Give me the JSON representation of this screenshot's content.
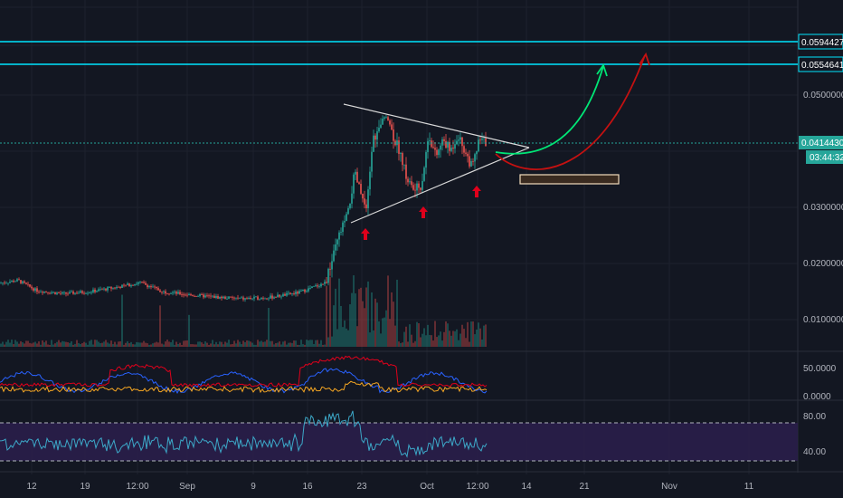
{
  "colors": {
    "background": "#131722",
    "grid": "#1e222d",
    "up": "#26a69a",
    "down": "#ef5350",
    "level_line": "#00e5ff",
    "trendline": "#d9d9d9",
    "arrow_green": "#00e676",
    "arrow_red": "#d50000",
    "up_marker": "#e0001b",
    "oscillator_blue": "#2962ff",
    "oscillator_red": "#e0001b",
    "oscillator_orange": "#f5a623",
    "rsi_line": "#3ca8c8",
    "rsi_band": "#2a1e4a",
    "target_box": "#f2dcbc"
  },
  "price_axis": {
    "ticks": [
      "0.0500000",
      "0.0300000",
      "0.0200000",
      "0.0100000"
    ],
    "level_labels": [
      "0.0594427",
      "0.0554641"
    ],
    "current_price": "0.0414430",
    "countdown": "03:44:32"
  },
  "time_axis": {
    "ticks": [
      "12",
      "19",
      "12:00",
      "Sep",
      "9",
      "16",
      "23",
      "Oct",
      "12:00",
      "14",
      "21",
      "Nov",
      "11"
    ]
  },
  "oscillator_axis": {
    "ticks": [
      "50.0000",
      "0.0000"
    ]
  },
  "rsi_axis": {
    "ticks": [
      "80.00",
      "40.00"
    ]
  },
  "chart_data": [
    {
      "type": "candlestick",
      "title": "",
      "horizontal_levels": [
        0.0594427,
        0.0554641
      ],
      "current_price": 0.041443,
      "y_ticks": [
        0.05,
        0.03,
        0.02,
        0.01
      ],
      "x_ticks": [
        "12",
        "19",
        "12:00",
        "Sep",
        "9",
        "16",
        "23",
        "Oct",
        "12:00",
        "14",
        "21",
        "Nov",
        "11"
      ],
      "price_path_approx": [
        {
          "x": "12",
          "y": 0.0165
        },
        {
          "x": "19",
          "y": 0.0148
        },
        {
          "x": "12:00",
          "y": 0.0155
        },
        {
          "x": "Sep",
          "y": 0.0143
        },
        {
          "x": "9",
          "y": 0.0138
        },
        {
          "x": "16",
          "y": 0.0162
        },
        {
          "x": "23",
          "y": 0.036
        },
        {
          "x": "Oct",
          "y": 0.038
        },
        {
          "x": "12:00",
          "y": 0.0395
        }
      ],
      "annotations": {
        "triangle_upper_trendline": "descending resistance",
        "triangle_lower_trendline": "ascending support",
        "up_arrow_markers": 3,
        "projected_paths": [
          "green",
          "red"
        ]
      }
    },
    {
      "type": "line",
      "title": "",
      "y_ticks": [
        50,
        0
      ],
      "series": [
        {
          "color": "blue"
        },
        {
          "color": "red"
        },
        {
          "color": "orange"
        }
      ]
    },
    {
      "type": "line",
      "title": "",
      "y_ticks": [
        80,
        40
      ],
      "band_levels": [
        70,
        30
      ],
      "series": [
        {
          "color": "teal"
        }
      ]
    }
  ]
}
